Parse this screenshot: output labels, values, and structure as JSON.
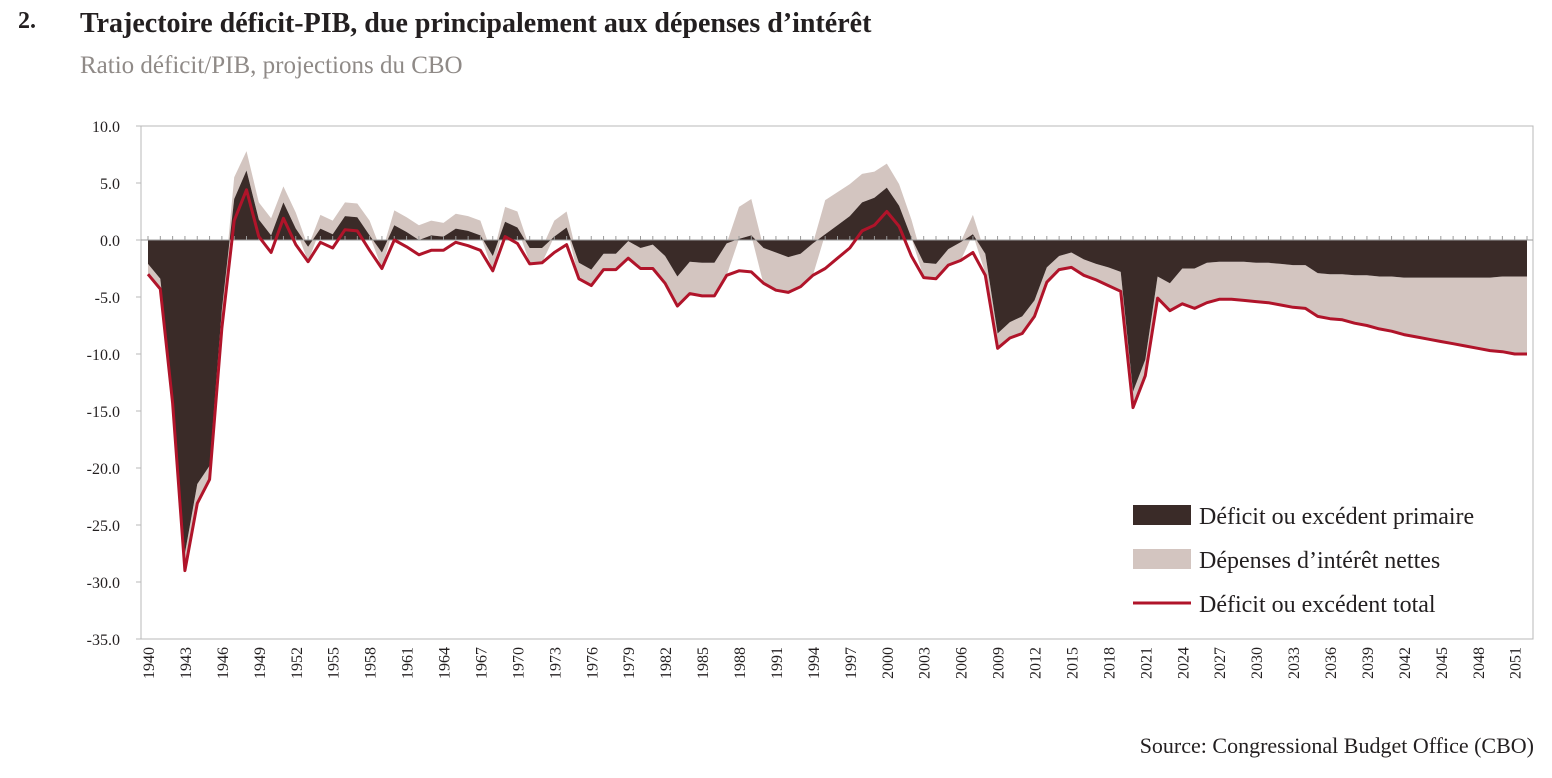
{
  "heading": {
    "number": "2.",
    "title": "Trajectoire déficit-PIB, due principalement aux dépenses d’intérêt",
    "subtitle": "Ratio déficit/PIB, projections du CBO"
  },
  "source": "Source: Congressional Budget Office (CBO)",
  "colors": {
    "primary": "#3a2b28",
    "interest": "#d3c5c0",
    "total": "#b0142a",
    "axis": "#b8b8b8"
  },
  "chart_data": {
    "type": "area",
    "title": "Trajectoire déficit-PIB, due principalement aux dépenses d’intérêt",
    "subtitle": "Ratio déficit/PIB, projections du CBO",
    "xlabel": "",
    "ylabel": "",
    "ylim": [
      -35,
      10
    ],
    "xlim": [
      1940,
      2052
    ],
    "yticks": [
      10,
      5,
      0,
      -5,
      -10,
      -15,
      -20,
      -25,
      -30,
      -35
    ],
    "ytick_labels": [
      "10.0",
      "5.0",
      "0.0",
      "-5.0",
      "-10.0",
      "-15.0",
      "-20.0",
      "-25.0",
      "-30.0",
      "-35.0"
    ],
    "xtick_labels": [
      "1940",
      "1943",
      "1946",
      "1949",
      "1952",
      "1955",
      "1958",
      "1961",
      "1964",
      "1967",
      "1970",
      "1973",
      "1976",
      "1979",
      "1982",
      "1985",
      "1988",
      "1991",
      "1994",
      "1997",
      "2000",
      "2003",
      "2006",
      "2009",
      "2012",
      "2015",
      "2018",
      "2021",
      "2024",
      "2027",
      "2030",
      "2033",
      "2036",
      "2039",
      "2042",
      "2045",
      "2048",
      "2051"
    ],
    "grid": false,
    "legend_position": "bottom-right",
    "x": [
      1940,
      1941,
      1942,
      1943,
      1944,
      1945,
      1946,
      1947,
      1948,
      1949,
      1950,
      1951,
      1952,
      1953,
      1954,
      1955,
      1956,
      1957,
      1958,
      1959,
      1960,
      1961,
      1962,
      1963,
      1964,
      1965,
      1966,
      1967,
      1968,
      1969,
      1970,
      1971,
      1972,
      1973,
      1974,
      1975,
      1976,
      1977,
      1978,
      1979,
      1980,
      1981,
      1982,
      1983,
      1984,
      1985,
      1986,
      1987,
      1988,
      1989,
      1990,
      1991,
      1992,
      1993,
      1994,
      1995,
      1996,
      1997,
      1998,
      1999,
      2000,
      2001,
      2002,
      2003,
      2004,
      2005,
      2006,
      2007,
      2008,
      2009,
      2010,
      2011,
      2012,
      2013,
      2014,
      2015,
      2016,
      2017,
      2018,
      2019,
      2020,
      2021,
      2022,
      2023,
      2024,
      2025,
      2026,
      2027,
      2028,
      2029,
      2030,
      2031,
      2032,
      2033,
      2034,
      2035,
      2036,
      2037,
      2038,
      2039,
      2040,
      2041,
      2042,
      2043,
      2044,
      2045,
      2046,
      2047,
      2048,
      2049,
      2050,
      2051,
      2052
    ],
    "series": [
      {
        "name": "Déficit ou excédent primaire",
        "type": "area",
        "color": "#3a2b28",
        "values": [
          -2.1,
          -3.4,
          -13.5,
          -27.5,
          -21.4,
          -19.8,
          -6.1,
          3.6,
          6.1,
          1.8,
          0.4,
          3.3,
          1.0,
          -0.6,
          1.0,
          0.5,
          2.1,
          2.0,
          0.4,
          -1.1,
          1.3,
          0.7,
          0.0,
          0.4,
          0.3,
          1.0,
          0.8,
          0.4,
          -1.4,
          1.6,
          1.1,
          -0.7,
          -0.7,
          0.3,
          1.1,
          -2.0,
          -2.6,
          -1.2,
          -1.2,
          -0.1,
          -0.7,
          -0.4,
          -1.4,
          -3.2,
          -1.9,
          -2.0,
          -2.0,
          -0.3,
          0.1,
          0.4,
          -0.7,
          -1.1,
          -1.5,
          -1.2,
          -0.3,
          0.5,
          1.3,
          2.1,
          3.3,
          3.7,
          4.6,
          3.0,
          0.2,
          -2.0,
          -2.1,
          -0.8,
          -0.2,
          0.5,
          -1.2,
          -8.2,
          -7.2,
          -6.7,
          -5.3,
          -2.4,
          -1.4,
          -1.1,
          -1.7,
          -2.1,
          -2.4,
          -2.8,
          -13.3,
          -10.5,
          -3.2,
          -3.8,
          -2.5,
          -2.5,
          -2.0,
          -1.9,
          -1.9,
          -1.9,
          -2.0,
          -2.0,
          -2.1,
          -2.2,
          -2.2,
          -2.9,
          -3.0,
          -3.0,
          -3.1,
          -3.1,
          -3.2,
          -3.2,
          -3.3,
          -3.3,
          -3.3,
          -3.3,
          -3.3,
          -3.3,
          -3.3,
          -3.3,
          -3.2,
          -3.2,
          -3.2
        ]
      },
      {
        "name": "Dépenses d’intérêt nettes",
        "type": "area",
        "color": "#d3c5c0",
        "values": [
          0.9,
          0.9,
          0.8,
          1.5,
          1.7,
          1.2,
          1.6,
          1.9,
          1.7,
          1.5,
          1.5,
          1.4,
          1.4,
          1.3,
          1.2,
          1.2,
          1.2,
          1.2,
          1.3,
          1.4,
          1.3,
          1.3,
          1.3,
          1.3,
          1.2,
          1.3,
          1.3,
          1.3,
          1.3,
          1.3,
          1.4,
          1.3,
          1.3,
          1.4,
          1.4,
          1.4,
          1.4,
          1.4,
          1.4,
          1.5,
          1.8,
          2.1,
          2.4,
          2.6,
          2.8,
          2.9,
          2.9,
          2.8,
          2.8,
          3.2,
          3.2,
          3.3,
          3.1,
          2.9,
          2.8,
          3.0,
          2.9,
          2.8,
          2.5,
          2.3,
          2.1,
          1.9,
          1.6,
          1.3,
          1.3,
          1.4,
          1.6,
          1.7,
          1.7,
          1.3,
          1.4,
          1.5,
          1.4,
          1.3,
          1.2,
          1.3,
          1.4,
          1.4,
          1.6,
          1.7,
          1.4,
          1.4,
          1.9,
          2.4,
          3.1,
          3.5,
          3.5,
          3.3,
          3.3,
          3.4,
          3.4,
          3.5,
          3.6,
          3.7,
          3.8,
          3.8,
          3.9,
          4.0,
          4.2,
          4.4,
          4.6,
          4.8,
          5.0,
          5.2,
          5.4,
          5.6,
          5.8,
          6.0,
          6.2,
          6.4,
          6.6,
          6.8,
          6.8
        ]
      },
      {
        "name": "Déficit ou excédent total",
        "type": "line",
        "color": "#b0142a",
        "values": [
          -3.0,
          -4.3,
          -14.3,
          -29.0,
          -23.1,
          -21.0,
          -7.7,
          1.7,
          4.4,
          0.3,
          -1.1,
          1.9,
          -0.4,
          -1.9,
          -0.2,
          -0.7,
          0.9,
          0.8,
          -0.9,
          -2.5,
          0.0,
          -0.6,
          -1.3,
          -0.9,
          -0.9,
          -0.2,
          -0.5,
          -0.9,
          -2.7,
          0.3,
          -0.3,
          -2.1,
          -2.0,
          -1.1,
          -0.4,
          -3.4,
          -4.0,
          -2.6,
          -2.6,
          -1.6,
          -2.5,
          -2.5,
          -3.8,
          -5.8,
          -4.7,
          -4.9,
          -4.9,
          -3.1,
          -2.7,
          -2.8,
          -3.8,
          -4.4,
          -4.6,
          -4.1,
          -3.1,
          -2.5,
          -1.6,
          -0.7,
          0.8,
          1.3,
          2.5,
          1.2,
          -1.4,
          -3.3,
          -3.4,
          -2.2,
          -1.8,
          -1.1,
          -3.1,
          -9.5,
          -8.6,
          -8.2,
          -6.7,
          -3.7,
          -2.6,
          -2.4,
          -3.1,
          -3.5,
          -4.0,
          -4.5,
          -14.7,
          -11.9,
          -5.1,
          -6.2,
          -5.6,
          -6.0,
          -5.5,
          -5.2,
          -5.2,
          -5.3,
          -5.4,
          -5.5,
          -5.7,
          -5.9,
          -6.0,
          -6.7,
          -6.9,
          -7.0,
          -7.3,
          -7.5,
          -7.8,
          -8.0,
          -8.3,
          -8.5,
          -8.7,
          -8.9,
          -9.1,
          -9.3,
          -9.5,
          -9.7,
          -9.8,
          -10.0,
          -10.0
        ]
      }
    ]
  }
}
